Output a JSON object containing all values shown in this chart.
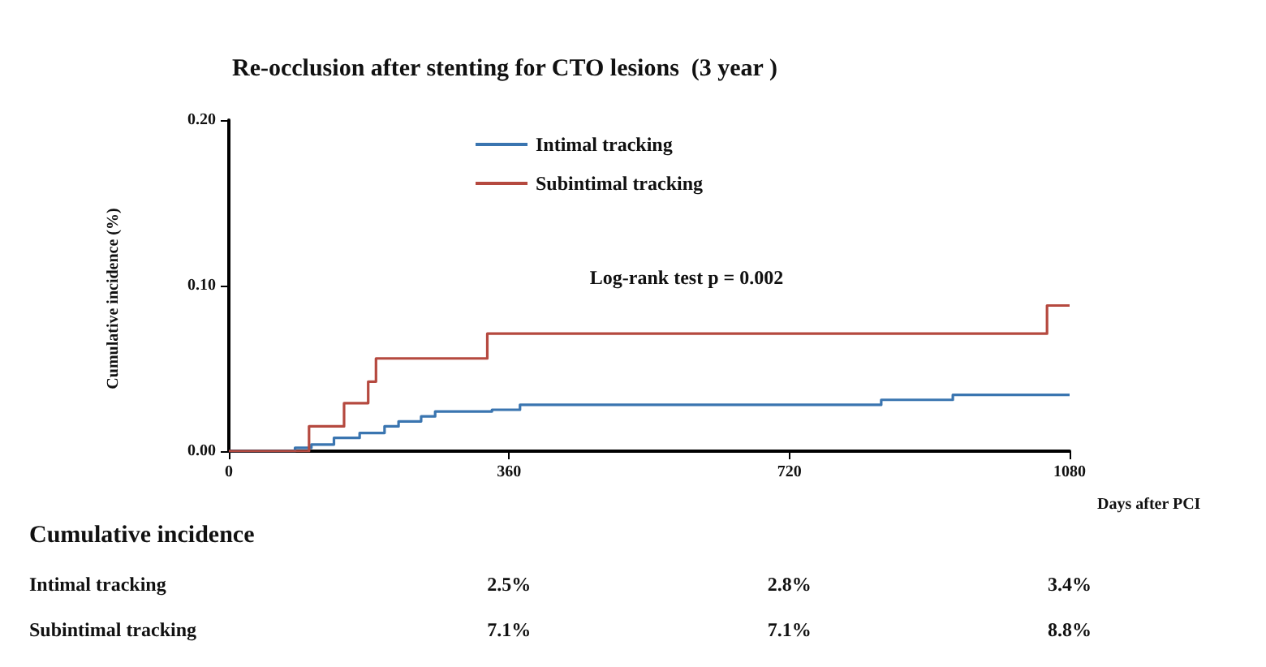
{
  "chart_data": {
    "type": "step",
    "title": "Re-occlusion after stenting for CTO lesions  (3 year )",
    "xlabel": "Days after PCI",
    "ylabel": "Cumulative incidence (%)",
    "annotations": [
      "Log-rank test p = 0.002",
      "Cumulative incidence",
      "Intimal tracking",
      "2.5%",
      "2.8%",
      "3.4%",
      "Subintimal tracking",
      "7.1%",
      "7.1%",
      "8.8%"
    ],
    "xlim": [
      0,
      1080
    ],
    "xticks": [
      0,
      360,
      720,
      1080
    ],
    "ylim": [
      0,
      0.2
    ],
    "yticks": [
      {
        "value": 0,
        "label": "0.00"
      },
      {
        "value": 0.1,
        "label": "0.10"
      },
      {
        "value": 0.2,
        "label": "0.20"
      }
    ],
    "grid": false,
    "legend": "top",
    "marker": "none",
    "line_style": "solid",
    "series": [
      {
        "name": "Intimal tracking",
        "color": "#3a75b0",
        "x": [
          0,
          85,
          106,
          135,
          168,
          200,
          218,
          247,
          265,
          338,
          360,
          374,
          720,
          838,
          930,
          1080
        ],
        "values": [
          0,
          0.002,
          0.004,
          0.008,
          0.011,
          0.015,
          0.018,
          0.021,
          0.024,
          0.025,
          0.025,
          0.028,
          0.028,
          0.031,
          0.034,
          0.034
        ]
      },
      {
        "name": "Subintimal tracking",
        "color": "#b5493f",
        "x": [
          0,
          103,
          148,
          179,
          189,
          332,
          360,
          720,
          1051,
          1080
        ],
        "values": [
          0,
          0.015,
          0.029,
          0.042,
          0.056,
          0.071,
          0.071,
          0.071,
          0.088,
          0.088
        ]
      }
    ]
  }
}
